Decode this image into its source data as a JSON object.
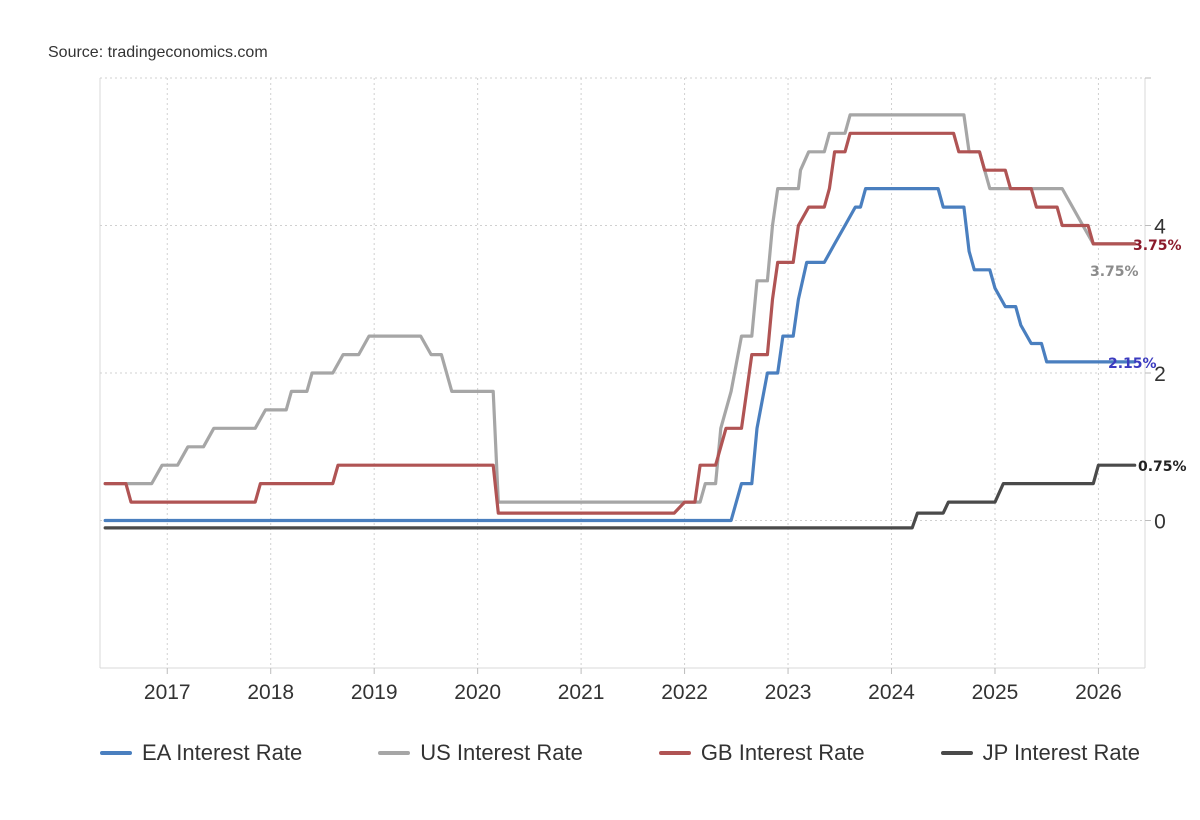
{
  "source": "Source: tradingeconomics.com",
  "colors": {
    "EA Interest Rate": "#4a7fbf",
    "US Interest Rate": "#a6a6a6",
    "GB Interest Rate": "#b05454",
    "JP Interest Rate": "#4a4a4a"
  },
  "chart_data": {
    "type": "line",
    "title": "",
    "xlabel": "",
    "ylabel": "",
    "xlim": [
      2016.35,
      2026.45
    ],
    "ylim": [
      -2,
      6
    ],
    "yticks": [
      "0",
      "2",
      "4"
    ],
    "xticks": [
      "2017",
      "2018",
      "2019",
      "2020",
      "2021",
      "2022",
      "2023",
      "2024",
      "2025",
      "2026"
    ],
    "grid": true,
    "legend_position": "bottom",
    "end_labels": [
      {
        "series": "GB Interest Rate",
        "text": "3.75%",
        "color": "#8b1a2b",
        "y": 3.75
      },
      {
        "series": "US Interest Rate",
        "text": "3.75%",
        "color": "#8c8c8c",
        "y": 3.4
      },
      {
        "series": "EA Interest Rate",
        "text": "2.15%",
        "color": "#3b3bbf",
        "y": 2.15
      },
      {
        "series": "JP Interest Rate",
        "text": "0.75%",
        "color": "#222222",
        "y": 0.75
      }
    ],
    "series": [
      {
        "name": "EA Interest Rate",
        "points": [
          [
            2016.4,
            0
          ],
          [
            2022.45,
            0
          ],
          [
            2022.55,
            0.5
          ],
          [
            2022.65,
            0.5
          ],
          [
            2022.7,
            1.25
          ],
          [
            2022.8,
            2.0
          ],
          [
            2022.9,
            2.0
          ],
          [
            2022.95,
            2.5
          ],
          [
            2023.05,
            2.5
          ],
          [
            2023.1,
            3.0
          ],
          [
            2023.18,
            3.5
          ],
          [
            2023.35,
            3.5
          ],
          [
            2023.45,
            3.75
          ],
          [
            2023.55,
            4.0
          ],
          [
            2023.65,
            4.25
          ],
          [
            2023.7,
            4.25
          ],
          [
            2023.75,
            4.5
          ],
          [
            2024.45,
            4.5
          ],
          [
            2024.5,
            4.25
          ],
          [
            2024.7,
            4.25
          ],
          [
            2024.75,
            3.65
          ],
          [
            2024.8,
            3.4
          ],
          [
            2024.95,
            3.4
          ],
          [
            2025.0,
            3.15
          ],
          [
            2025.1,
            2.9
          ],
          [
            2025.2,
            2.9
          ],
          [
            2025.25,
            2.65
          ],
          [
            2025.35,
            2.4
          ],
          [
            2025.45,
            2.4
          ],
          [
            2025.5,
            2.15
          ],
          [
            2026.35,
            2.15
          ]
        ]
      },
      {
        "name": "US Interest Rate",
        "points": [
          [
            2016.4,
            0.5
          ],
          [
            2016.85,
            0.5
          ],
          [
            2016.95,
            0.75
          ],
          [
            2017.1,
            0.75
          ],
          [
            2017.2,
            1.0
          ],
          [
            2017.35,
            1.0
          ],
          [
            2017.45,
            1.25
          ],
          [
            2017.85,
            1.25
          ],
          [
            2017.95,
            1.5
          ],
          [
            2018.15,
            1.5
          ],
          [
            2018.2,
            1.75
          ],
          [
            2018.35,
            1.75
          ],
          [
            2018.4,
            2.0
          ],
          [
            2018.6,
            2.0
          ],
          [
            2018.7,
            2.25
          ],
          [
            2018.85,
            2.25
          ],
          [
            2018.95,
            2.5
          ],
          [
            2019.45,
            2.5
          ],
          [
            2019.55,
            2.25
          ],
          [
            2019.65,
            2.25
          ],
          [
            2019.75,
            1.75
          ],
          [
            2020.15,
            1.75
          ],
          [
            2020.2,
            0.25
          ],
          [
            2021.95,
            0.25
          ],
          [
            2022.15,
            0.25
          ],
          [
            2022.2,
            0.5
          ],
          [
            2022.3,
            0.5
          ],
          [
            2022.35,
            1.25
          ],
          [
            2022.45,
            1.75
          ],
          [
            2022.55,
            2.5
          ],
          [
            2022.65,
            2.5
          ],
          [
            2022.7,
            3.25
          ],
          [
            2022.8,
            3.25
          ],
          [
            2022.85,
            4.0
          ],
          [
            2022.9,
            4.5
          ],
          [
            2023.1,
            4.5
          ],
          [
            2023.12,
            4.75
          ],
          [
            2023.2,
            5.0
          ],
          [
            2023.35,
            5.0
          ],
          [
            2023.4,
            5.25
          ],
          [
            2023.55,
            5.25
          ],
          [
            2023.6,
            5.5
          ],
          [
            2024.7,
            5.5
          ],
          [
            2024.75,
            5.0
          ],
          [
            2024.85,
            5.0
          ],
          [
            2024.95,
            4.5
          ],
          [
            2025.65,
            4.5
          ],
          [
            2025.75,
            4.25
          ],
          [
            2025.85,
            4.0
          ],
          [
            2025.95,
            3.75
          ],
          [
            2026.35,
            3.75
          ]
        ]
      },
      {
        "name": "GB Interest Rate",
        "points": [
          [
            2016.4,
            0.5
          ],
          [
            2016.6,
            0.5
          ],
          [
            2016.65,
            0.25
          ],
          [
            2017.85,
            0.25
          ],
          [
            2017.9,
            0.5
          ],
          [
            2018.6,
            0.5
          ],
          [
            2018.65,
            0.75
          ],
          [
            2020.15,
            0.75
          ],
          [
            2020.2,
            0.1
          ],
          [
            2021.9,
            0.1
          ],
          [
            2022.0,
            0.25
          ],
          [
            2022.1,
            0.25
          ],
          [
            2022.15,
            0.75
          ],
          [
            2022.3,
            0.75
          ],
          [
            2022.35,
            1.0
          ],
          [
            2022.4,
            1.25
          ],
          [
            2022.55,
            1.25
          ],
          [
            2022.6,
            1.75
          ],
          [
            2022.65,
            2.25
          ],
          [
            2022.8,
            2.25
          ],
          [
            2022.85,
            3.0
          ],
          [
            2022.9,
            3.5
          ],
          [
            2023.05,
            3.5
          ],
          [
            2023.1,
            4.0
          ],
          [
            2023.2,
            4.25
          ],
          [
            2023.35,
            4.25
          ],
          [
            2023.4,
            4.5
          ],
          [
            2023.45,
            5.0
          ],
          [
            2023.55,
            5.0
          ],
          [
            2023.6,
            5.25
          ],
          [
            2024.6,
            5.25
          ],
          [
            2024.65,
            5.0
          ],
          [
            2024.85,
            5.0
          ],
          [
            2024.9,
            4.75
          ],
          [
            2025.1,
            4.75
          ],
          [
            2025.15,
            4.5
          ],
          [
            2025.35,
            4.5
          ],
          [
            2025.4,
            4.25
          ],
          [
            2025.6,
            4.25
          ],
          [
            2025.65,
            4.0
          ],
          [
            2025.9,
            4.0
          ],
          [
            2025.95,
            3.75
          ],
          [
            2026.35,
            3.75
          ]
        ]
      },
      {
        "name": "JP Interest Rate",
        "points": [
          [
            2016.4,
            -0.1
          ],
          [
            2024.2,
            -0.1
          ],
          [
            2024.25,
            0.1
          ],
          [
            2024.5,
            0.1
          ],
          [
            2024.55,
            0.25
          ],
          [
            2025.0,
            0.25
          ],
          [
            2025.08,
            0.5
          ],
          [
            2025.95,
            0.5
          ],
          [
            2026.0,
            0.75
          ],
          [
            2026.35,
            0.75
          ]
        ]
      }
    ]
  }
}
